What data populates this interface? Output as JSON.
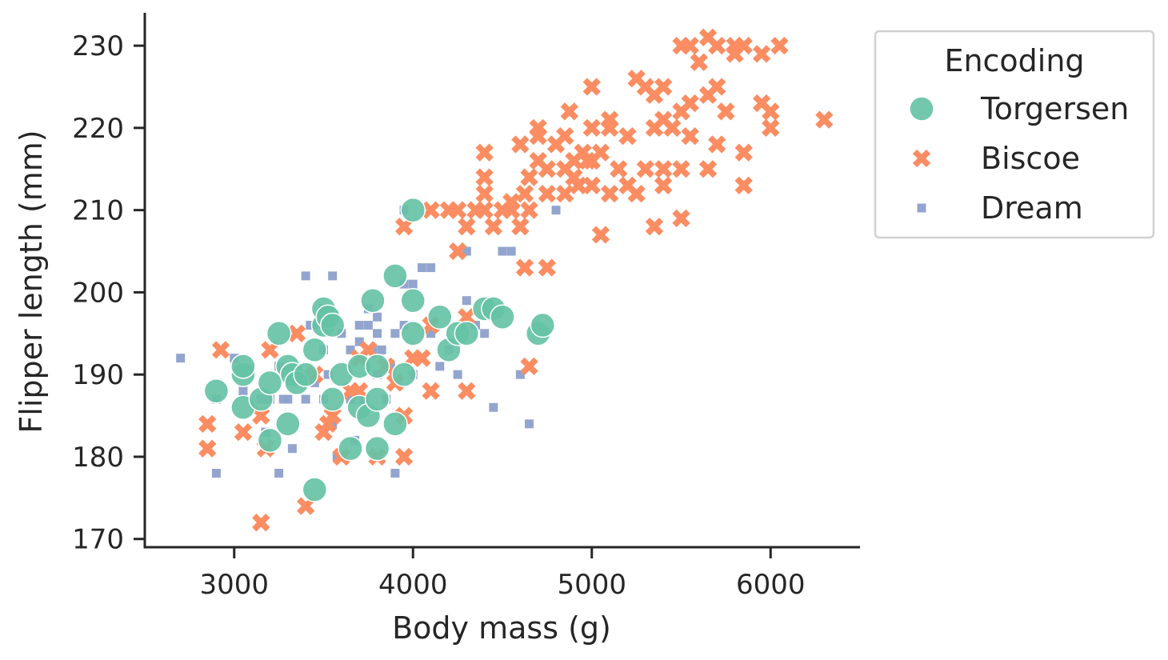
{
  "chart_data": {
    "type": "scatter",
    "xlabel": "Body mass (g)",
    "ylabel": "Flipper length (mm)",
    "xlim": [
      2500,
      6500
    ],
    "ylim": [
      169,
      234
    ],
    "xticks": [
      3000,
      4000,
      5000,
      6000
    ],
    "xtick_labels": [
      "3000",
      "4000",
      "5000",
      "6000"
    ],
    "yticks": [
      170,
      180,
      190,
      200,
      210,
      220,
      230
    ],
    "ytick_labels": [
      "170",
      "180",
      "190",
      "200",
      "210",
      "220",
      "230"
    ],
    "grid": false,
    "legend": {
      "title": "Encoding",
      "placement": "outside-top-right"
    },
    "series": [
      {
        "name": "Torgersen",
        "marker": "circle",
        "color": "#66c2a5",
        "points": [
          [
            2900,
            188
          ],
          [
            3050,
            190
          ],
          [
            3050,
            191
          ],
          [
            3050,
            186
          ],
          [
            3150,
            187
          ],
          [
            3200,
            182
          ],
          [
            3200,
            189
          ],
          [
            3250,
            195
          ],
          [
            3300,
            191
          ],
          [
            3300,
            184
          ],
          [
            3325,
            190
          ],
          [
            3350,
            189
          ],
          [
            3400,
            190
          ],
          [
            3450,
            176
          ],
          [
            3450,
            193
          ],
          [
            3500,
            196
          ],
          [
            3500,
            198
          ],
          [
            3525,
            197
          ],
          [
            3550,
            196
          ],
          [
            3550,
            187
          ],
          [
            3600,
            190
          ],
          [
            3650,
            181
          ],
          [
            3700,
            191
          ],
          [
            3700,
            186
          ],
          [
            3750,
            185
          ],
          [
            3775,
            199
          ],
          [
            3800,
            181
          ],
          [
            3800,
            187
          ],
          [
            3800,
            191
          ],
          [
            3900,
            202
          ],
          [
            3900,
            184
          ],
          [
            3950,
            190
          ],
          [
            4000,
            199
          ],
          [
            4000,
            195
          ],
          [
            4000,
            210
          ],
          [
            4150,
            197
          ],
          [
            4200,
            193
          ],
          [
            4250,
            195
          ],
          [
            4300,
            195
          ],
          [
            4400,
            198
          ],
          [
            4450,
            198
          ],
          [
            4500,
            197
          ],
          [
            4700,
            195
          ],
          [
            4725,
            196
          ]
        ]
      },
      {
        "name": "Biscoe",
        "marker": "x",
        "color": "#fc8d62",
        "points": [
          [
            2850,
            184
          ],
          [
            2850,
            181
          ],
          [
            2925,
            193
          ],
          [
            3050,
            183
          ],
          [
            3150,
            185
          ],
          [
            3150,
            172
          ],
          [
            3175,
            181
          ],
          [
            3200,
            193
          ],
          [
            3350,
            195
          ],
          [
            3400,
            174
          ],
          [
            3450,
            190
          ],
          [
            3500,
            183
          ],
          [
            3525,
            184
          ],
          [
            3550,
            185
          ],
          [
            3600,
            180
          ],
          [
            3650,
            188
          ],
          [
            3700,
            192
          ],
          [
            3700,
            188
          ],
          [
            3750,
            193
          ],
          [
            3800,
            180
          ],
          [
            3850,
            191
          ],
          [
            3900,
            189
          ],
          [
            3950,
            180
          ],
          [
            3950,
            185
          ],
          [
            3950,
            208
          ],
          [
            4000,
            192
          ],
          [
            4050,
            192
          ],
          [
            4100,
            188
          ],
          [
            4100,
            196
          ],
          [
            4100,
            210
          ],
          [
            4200,
            210
          ],
          [
            4250,
            205
          ],
          [
            4250,
            210
          ],
          [
            4300,
            197
          ],
          [
            4300,
            188
          ],
          [
            4300,
            208
          ],
          [
            4350,
            210
          ],
          [
            4400,
            210
          ],
          [
            4400,
            212
          ],
          [
            4400,
            214
          ],
          [
            4400,
            217
          ],
          [
            4450,
            208
          ],
          [
            4500,
            210
          ],
          [
            4550,
            210
          ],
          [
            4550,
            211
          ],
          [
            4600,
            208
          ],
          [
            4600,
            218
          ],
          [
            4625,
            203
          ],
          [
            4625,
            212
          ],
          [
            4650,
            210
          ],
          [
            4650,
            214
          ],
          [
            4650,
            191
          ],
          [
            4700,
            216
          ],
          [
            4700,
            219
          ],
          [
            4700,
            220
          ],
          [
            4750,
            203
          ],
          [
            4750,
            212
          ],
          [
            4750,
            215
          ],
          [
            4800,
            218
          ],
          [
            4850,
            212
          ],
          [
            4850,
            215
          ],
          [
            4850,
            219
          ],
          [
            4875,
            222
          ],
          [
            4900,
            214
          ],
          [
            4900,
            216
          ],
          [
            4925,
            213
          ],
          [
            4950,
            217
          ],
          [
            4975,
            216
          ],
          [
            5000,
            213
          ],
          [
            5000,
            216
          ],
          [
            5000,
            225
          ],
          [
            5000,
            220
          ],
          [
            5050,
            207
          ],
          [
            5050,
            217
          ],
          [
            5100,
            212
          ],
          [
            5100,
            220
          ],
          [
            5100,
            221
          ],
          [
            5150,
            215
          ],
          [
            5200,
            213
          ],
          [
            5200,
            219
          ],
          [
            5250,
            212
          ],
          [
            5250,
            226
          ],
          [
            5300,
            225
          ],
          [
            5300,
            215
          ],
          [
            5350,
            208
          ],
          [
            5350,
            220
          ],
          [
            5350,
            224
          ],
          [
            5400,
            213
          ],
          [
            5400,
            215
          ],
          [
            5400,
            221
          ],
          [
            5400,
            225
          ],
          [
            5450,
            220
          ],
          [
            5500,
            209
          ],
          [
            5500,
            215
          ],
          [
            5500,
            222
          ],
          [
            5500,
            230
          ],
          [
            5550,
            219
          ],
          [
            5550,
            223
          ],
          [
            5550,
            230
          ],
          [
            5600,
            228
          ],
          [
            5650,
            215
          ],
          [
            5650,
            224
          ],
          [
            5650,
            231
          ],
          [
            5700,
            218
          ],
          [
            5700,
            225
          ],
          [
            5700,
            230
          ],
          [
            5750,
            222
          ],
          [
            5800,
            229
          ],
          [
            5800,
            230
          ],
          [
            5850,
            213
          ],
          [
            5850,
            217
          ],
          [
            5850,
            230
          ],
          [
            5950,
            223
          ],
          [
            5950,
            229
          ],
          [
            6000,
            220
          ],
          [
            6000,
            222
          ],
          [
            6050,
            230
          ],
          [
            6300,
            221
          ]
        ]
      },
      {
        "name": "Dream",
        "marker": "square",
        "color": "#8da0cb",
        "points": [
          [
            2700,
            192
          ],
          [
            2900,
            178
          ],
          [
            2900,
            187
          ],
          [
            3000,
            192
          ],
          [
            3050,
            188
          ],
          [
            3150,
            187
          ],
          [
            3175,
            183
          ],
          [
            3200,
            187
          ],
          [
            3250,
            178
          ],
          [
            3250,
            191
          ],
          [
            3275,
            187
          ],
          [
            3300,
            187
          ],
          [
            3325,
            181
          ],
          [
            3350,
            195
          ],
          [
            3400,
            190
          ],
          [
            3400,
            187
          ],
          [
            3400,
            202
          ],
          [
            3425,
            196
          ],
          [
            3450,
            196
          ],
          [
            3450,
            189
          ],
          [
            3500,
            198
          ],
          [
            3500,
            193
          ],
          [
            3500,
            187
          ],
          [
            3525,
            190
          ],
          [
            3550,
            184
          ],
          [
            3550,
            202
          ],
          [
            3575,
            180
          ],
          [
            3600,
            195
          ],
          [
            3650,
            193
          ],
          [
            3650,
            187
          ],
          [
            3675,
            182
          ],
          [
            3700,
            194
          ],
          [
            3700,
            196
          ],
          [
            3725,
            187
          ],
          [
            3750,
            196
          ],
          [
            3750,
            198
          ],
          [
            3775,
            193
          ],
          [
            3800,
            195
          ],
          [
            3800,
            197
          ],
          [
            3800,
            190
          ],
          [
            3825,
            193
          ],
          [
            3850,
            187
          ],
          [
            3875,
            191
          ],
          [
            3900,
            178
          ],
          [
            3900,
            195
          ],
          [
            3950,
            201
          ],
          [
            3950,
            210
          ],
          [
            3950,
            196
          ],
          [
            4000,
            201
          ],
          [
            4000,
            190
          ],
          [
            4050,
            203
          ],
          [
            4100,
            195
          ],
          [
            4100,
            203
          ],
          [
            4150,
            191
          ],
          [
            4200,
            193
          ],
          [
            4250,
            190
          ],
          [
            4300,
            205
          ],
          [
            4300,
            199
          ],
          [
            4350,
            196
          ],
          [
            4400,
            195
          ],
          [
            4450,
            186
          ],
          [
            4500,
            205
          ],
          [
            4550,
            205
          ],
          [
            4600,
            190
          ],
          [
            4650,
            184
          ],
          [
            4800,
            210
          ]
        ]
      }
    ]
  }
}
